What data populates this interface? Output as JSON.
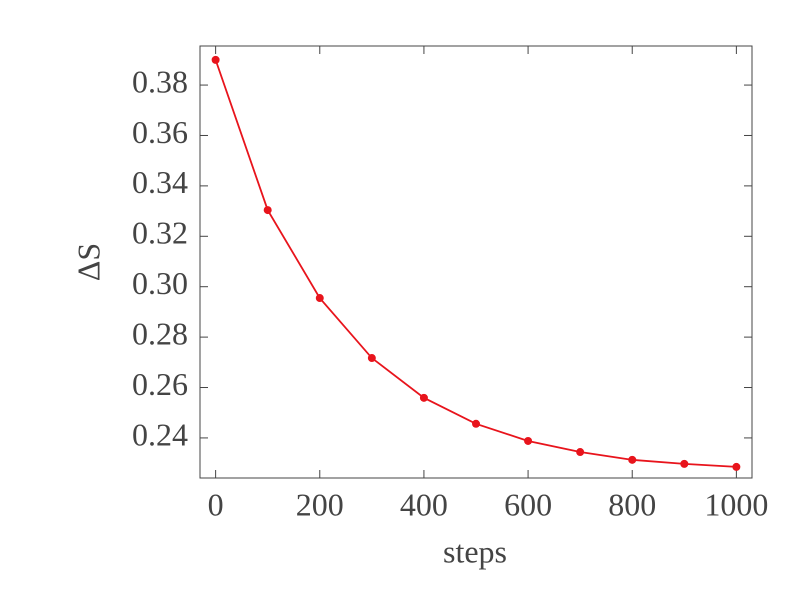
{
  "chart_data": {
    "type": "line",
    "x_label": "steps",
    "y_label": "ΔS",
    "x": [
      0,
      100,
      200,
      300,
      400,
      500,
      600,
      700,
      800,
      900,
      1000
    ],
    "series": [
      {
        "color": "#e8141c",
        "values": [
          0.39,
          0.3304,
          0.2955,
          0.2717,
          0.2559,
          0.2456,
          0.2388,
          0.2344,
          0.2313,
          0.2297,
          0.2285
        ]
      }
    ],
    "xlim": [
      -30,
      1030
    ],
    "ylim": [
      0.2241,
      0.3955
    ],
    "xticks": [
      0,
      200,
      400,
      600,
      800,
      1000
    ],
    "yticks": [
      0.24,
      0.26,
      0.28,
      {
        "value": 0.3,
        "label": "0.30"
      },
      0.32,
      0.34,
      0.36,
      0.38
    ],
    "grid": false
  }
}
